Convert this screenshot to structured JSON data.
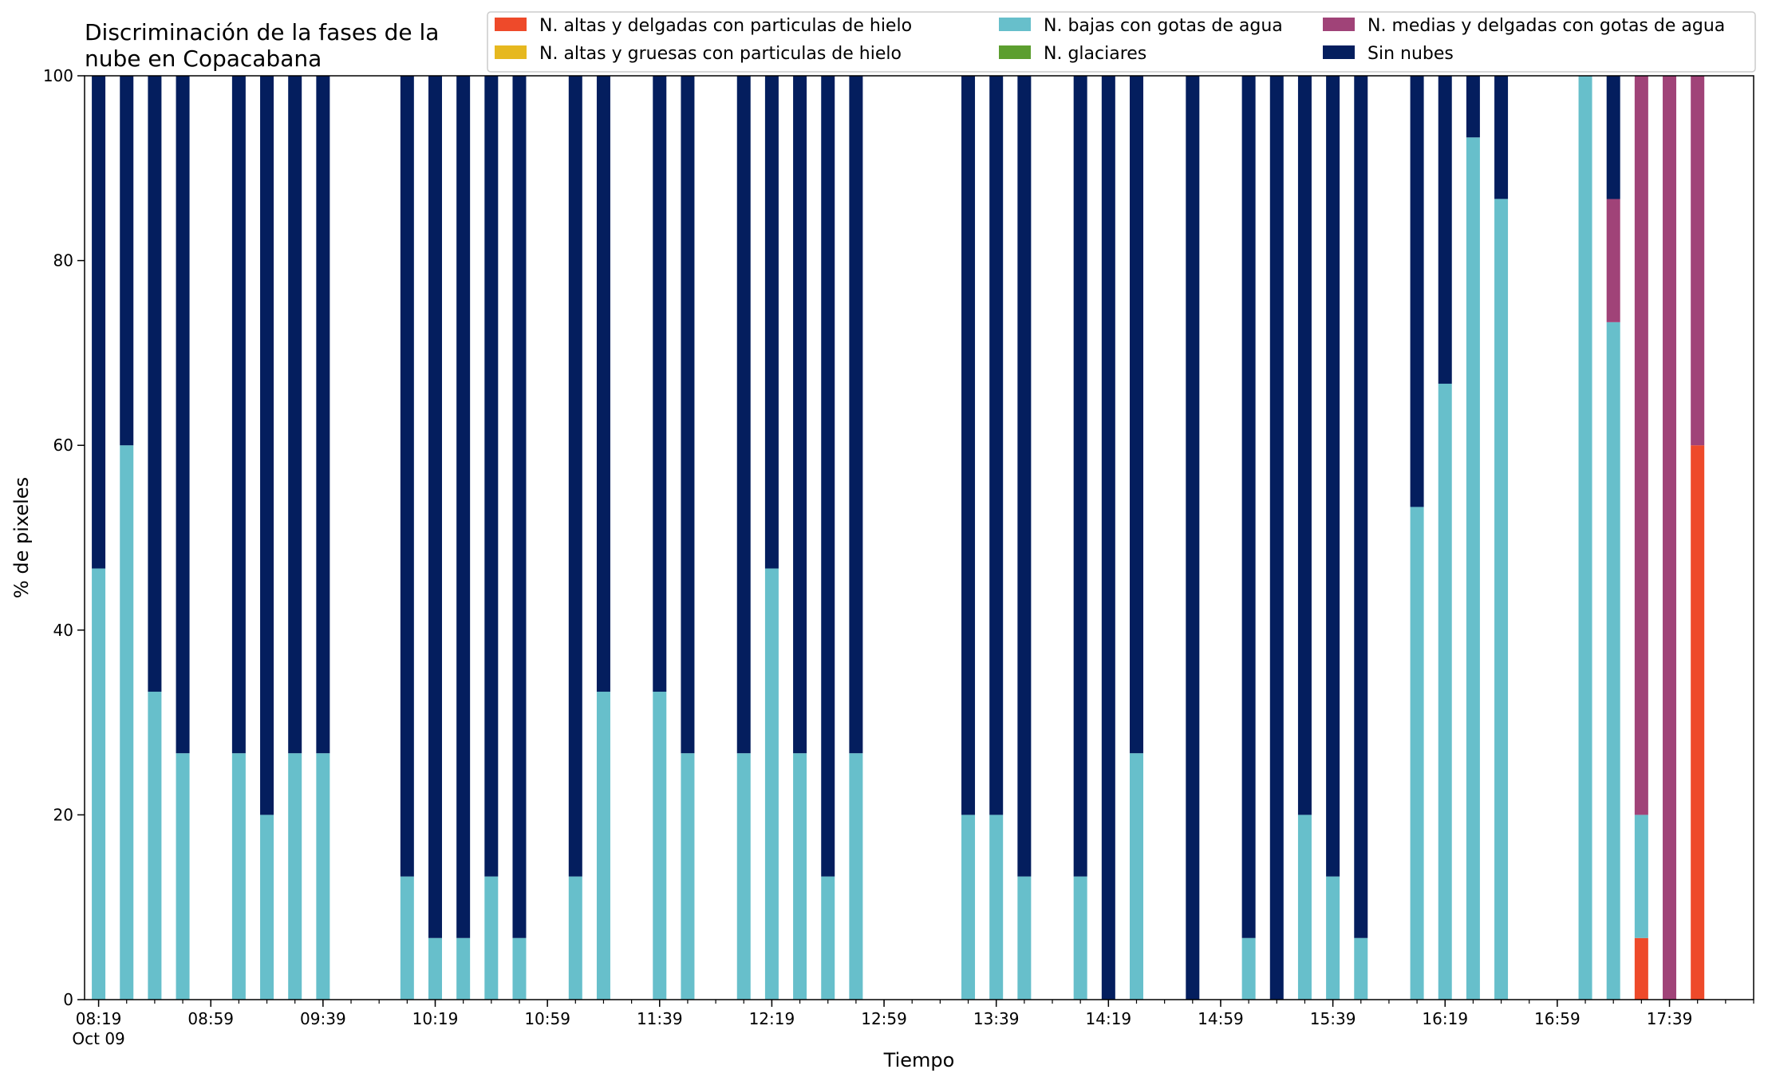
{
  "chart_data": {
    "type": "bar",
    "stacked": true,
    "title": "Discriminación de la fases de la\nnube en Copacabana",
    "xlabel": "Tiempo",
    "ylabel": "% de pixeles",
    "ylim": [
      0,
      100
    ],
    "yticks": [
      0,
      20,
      40,
      60,
      80,
      100
    ],
    "xlim": [
      "08:14",
      "18:09"
    ],
    "x_major_ticks": [
      "08:19",
      "08:59",
      "09:39",
      "10:19",
      "10:59",
      "11:39",
      "12:19",
      "12:59",
      "13:39",
      "14:19",
      "14:59",
      "15:39",
      "16:19",
      "16:59",
      "17:39"
    ],
    "x_minor_tick_step_minutes": 10,
    "x_date_label": "Oct 09",
    "legend_position": "top-right",
    "legend_ncol": 3,
    "grid": false,
    "times": [
      "08:19",
      "08:29",
      "08:39",
      "08:49",
      "09:09",
      "09:19",
      "09:29",
      "09:39",
      "10:09",
      "10:19",
      "10:29",
      "10:39",
      "10:49",
      "11:09",
      "11:19",
      "11:39",
      "11:49",
      "12:09",
      "12:19",
      "12:29",
      "12:39",
      "12:49",
      "13:29",
      "13:39",
      "13:49",
      "14:09",
      "14:19",
      "14:29",
      "14:49",
      "15:09",
      "15:19",
      "15:29",
      "15:39",
      "15:49",
      "16:09",
      "16:19",
      "16:29",
      "16:39",
      "17:09",
      "17:19",
      "17:29",
      "17:39",
      "17:49"
    ],
    "series": [
      {
        "name": "N. altas y delgadas con particulas de hielo",
        "color": "#ee4a2a",
        "values": [
          0,
          0,
          0,
          0,
          0,
          0,
          0,
          0,
          0,
          0,
          0,
          0,
          0,
          0,
          0,
          0,
          0,
          0,
          0,
          0,
          0,
          0,
          0,
          0,
          0,
          0,
          0,
          0,
          0,
          0,
          0,
          0,
          0,
          0,
          0,
          0,
          0,
          0,
          0,
          0,
          6.67,
          0,
          60
        ]
      },
      {
        "name": "N. altas y gruesas con particulas de hielo",
        "color": "#e6b81f",
        "values": [
          0,
          0,
          0,
          0,
          0,
          0,
          0,
          0,
          0,
          0,
          0,
          0,
          0,
          0,
          0,
          0,
          0,
          0,
          0,
          0,
          0,
          0,
          0,
          0,
          0,
          0,
          0,
          0,
          0,
          0,
          0,
          0,
          0,
          0,
          0,
          0,
          0,
          0,
          0,
          0,
          0,
          0,
          0
        ]
      },
      {
        "name": "N. bajas con gotas de agua",
        "color": "#67bfcb",
        "values": [
          46.67,
          60,
          33.33,
          26.67,
          26.67,
          20,
          26.67,
          26.67,
          13.33,
          6.67,
          6.67,
          13.33,
          6.67,
          13.33,
          33.33,
          33.33,
          26.67,
          26.67,
          46.67,
          26.67,
          13.33,
          26.67,
          20,
          20,
          13.33,
          13.33,
          0,
          26.67,
          0,
          6.67,
          0,
          20,
          13.33,
          6.67,
          53.33,
          66.67,
          93.33,
          86.67,
          100,
          73.33,
          13.33,
          0,
          0
        ]
      },
      {
        "name": "N. glaciares",
        "color": "#5c9e2f",
        "values": [
          0,
          0,
          0,
          0,
          0,
          0,
          0,
          0,
          0,
          0,
          0,
          0,
          0,
          0,
          0,
          0,
          0,
          0,
          0,
          0,
          0,
          0,
          0,
          0,
          0,
          0,
          0,
          0,
          0,
          0,
          0,
          0,
          0,
          0,
          0,
          0,
          0,
          0,
          0,
          0,
          0,
          0,
          0
        ]
      },
      {
        "name": "N. medias y delgadas con gotas de agua",
        "color": "#a04378",
        "values": [
          0,
          0,
          0,
          0,
          0,
          0,
          0,
          0,
          0,
          0,
          0,
          0,
          0,
          0,
          0,
          0,
          0,
          0,
          0,
          0,
          0,
          0,
          0,
          0,
          0,
          0,
          0,
          0,
          0,
          0,
          0,
          0,
          0,
          0,
          0,
          0,
          0,
          0,
          0,
          13.33,
          80,
          100,
          40
        ]
      },
      {
        "name": "Sin nubes",
        "color": "#041e5e",
        "values": [
          53.33,
          40,
          66.67,
          73.33,
          73.33,
          80,
          73.33,
          73.33,
          86.67,
          93.33,
          93.33,
          86.67,
          93.33,
          86.67,
          66.67,
          66.67,
          73.33,
          73.33,
          53.33,
          73.33,
          86.67,
          73.33,
          80,
          80,
          86.67,
          86.67,
          100,
          73.33,
          100,
          93.33,
          100,
          80,
          86.67,
          93.33,
          46.67,
          33.33,
          6.67,
          13.33,
          0,
          13.33,
          0,
          0,
          0
        ]
      }
    ]
  }
}
